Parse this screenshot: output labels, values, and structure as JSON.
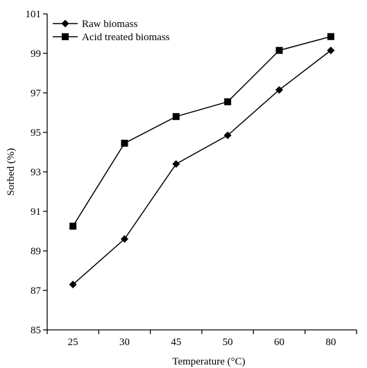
{
  "chart_data": {
    "type": "line",
    "title": "",
    "xlabel": "Temperature (°C)",
    "ylabel": "Sorbed (%)",
    "categories": [
      "25",
      "30",
      "45",
      "50",
      "60",
      "80"
    ],
    "ylim": [
      85,
      101
    ],
    "yticks": [
      85,
      87,
      89,
      91,
      93,
      95,
      97,
      99,
      101
    ],
    "grid": false,
    "legend_position": "top-left",
    "series": [
      {
        "name": "Raw biomass",
        "marker": "diamond",
        "color": "#000000",
        "values": [
          87.3,
          89.6,
          93.4,
          94.85,
          97.15,
          99.15
        ]
      },
      {
        "name": "Acid treated biomass",
        "marker": "square",
        "color": "#000000",
        "values": [
          90.25,
          94.45,
          95.8,
          96.55,
          99.15,
          99.85
        ]
      }
    ]
  }
}
